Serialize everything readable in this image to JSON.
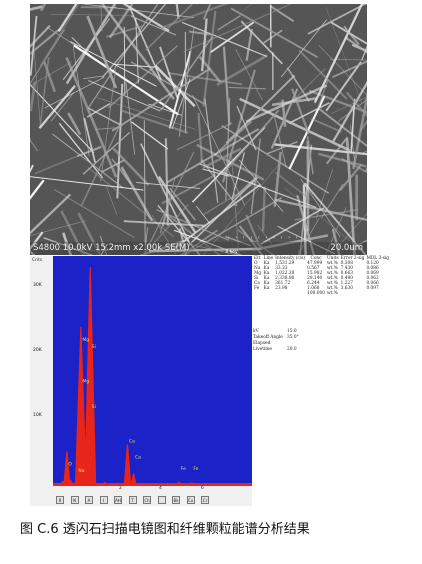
{
  "sem": {
    "caption": "S4800 10.0kV 15.2mm x2.00k SE(M)",
    "scale_bar": "20.0um",
    "scale_ticks": "' ' ' ' ' ' ' ' ' ' '"
  },
  "eds": {
    "y_axis_title": "Cnts",
    "y_ticks": [
      "30K",
      "20K",
      "10K"
    ],
    "x_ticks": [
      "2",
      "4",
      "6"
    ],
    "x_unit": "8 keV",
    "peak_labels": [
      {
        "text": "Mg",
        "energy": 1.25
      },
      {
        "text": "Mg",
        "energy": 1.25
      },
      {
        "text": "Si",
        "energy": 1.74
      },
      {
        "text": "Si",
        "energy": 1.74
      },
      {
        "text": "Ca",
        "energy": 3.69
      },
      {
        "text": "Ca",
        "energy": 4.01
      },
      {
        "text": "Fe",
        "energy": 6.4
      },
      {
        "text": "Fe",
        "energy": 7.06
      },
      {
        "text": "O",
        "energy": 0.52
      },
      {
        "text": "Na",
        "energy": 1.04
      }
    ],
    "buttons": [
      "R",
      "N",
      "A",
      "I",
      "AH",
      "T",
      "Ch",
      "",
      "Bk",
      "Cu",
      "Cr"
    ]
  },
  "chart_data": {
    "type": "line",
    "title": "",
    "xlabel": "keV",
    "ylabel": "Cnts",
    "xlim": [
      0,
      10
    ],
    "ylim": [
      0,
      35000
    ],
    "series": [
      {
        "x": [
          0.3,
          0.52,
          0.7,
          1.04,
          1.25,
          1.4,
          1.74,
          1.9,
          2.5,
          3.2,
          3.69,
          4.01,
          4.5,
          6.4,
          7.06,
          8.0
        ],
        "values": [
          500,
          5200,
          700,
          1200,
          25000,
          1200,
          34500,
          1000,
          300,
          200,
          6300,
          1700,
          150,
          350,
          250,
          100
        ]
      }
    ]
  },
  "results": {
    "headers": [
      "Elt.",
      "Line",
      "Intensity (c/s)",
      "Conc",
      "Units",
      "Error 2-sig",
      "MDL 3-sig"
    ],
    "rows": [
      [
        "O",
        "Ka",
        "1,531.29",
        "47.999",
        "wt.%",
        "0.308",
        "0.120"
      ],
      [
        "Na",
        "Ka",
        "33.33",
        "0.567",
        "wt.%",
        "7.430",
        "0.086"
      ],
      [
        "Mg",
        "Ka",
        "1,022.28",
        "15.982",
        "wt.%",
        "0.663",
        "0.069"
      ],
      [
        "Si",
        "Ka",
        "2,338.98",
        "28.140",
        "wt.%",
        "0.490",
        "0.062"
      ],
      [
        "Ca",
        "Ka",
        "361.72",
        "6.244",
        "wt.%",
        "1.227",
        "0.066"
      ],
      [
        "Fe",
        "Ka",
        "23.98",
        "1.068",
        "wt.%",
        "3.630",
        "0.097"
      ],
      [
        "",
        "",
        "",
        "100.000",
        "wt.%",
        "",
        ""
      ]
    ],
    "kv_label": "kV",
    "kv_value": "15.0",
    "takeoff_label": "Takeoff Angle",
    "takeoff_value": "35.0°",
    "livetime_label": "Elapsed Livetime",
    "livetime_value": "20.0"
  },
  "figure": {
    "caption": "图 C.6  透闪石扫描电镜图和纤维颗粒能谱分析结果"
  },
  "colors": {
    "plot_bg": "#1a22c8",
    "peak": "#e8251a",
    "label": "#e6e64a"
  }
}
